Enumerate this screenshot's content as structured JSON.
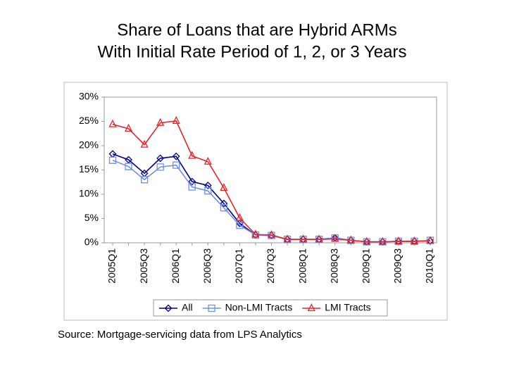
{
  "chart_data": {
    "type": "line",
    "title": "Share of Loans that are Hybrid ARMs",
    "subtitle": "With Initial Rate Period of 1, 2, or 3 Years",
    "source": "Source: Mortgage-servicing data from LPS Analytics",
    "categories": [
      "2005Q1",
      null,
      "2005Q3",
      null,
      "2006Q1",
      null,
      "2006Q3",
      null,
      "2007Q1",
      null,
      "2007Q3",
      null,
      "2008Q1",
      null,
      "2008Q3",
      null,
      "2009Q1",
      null,
      "2009Q3",
      null,
      "2010Q1"
    ],
    "series": [
      {
        "name": "All",
        "color": "#000080",
        "marker": "diamond",
        "values": [
          18.3,
          17.1,
          14.3,
          17.4,
          17.8,
          12.6,
          11.8,
          8.1,
          4.0,
          1.6,
          1.5,
          0.7,
          0.7,
          0.7,
          1.0,
          0.5,
          0.2,
          0.2,
          0.3,
          0.3,
          0.4
        ]
      },
      {
        "name": "Non-LMI Tracts",
        "color": "#6f8fe8",
        "marker": "square",
        "values": [
          17.0,
          15.7,
          13.0,
          15.6,
          16.0,
          11.5,
          10.7,
          7.2,
          3.6,
          1.6,
          1.5,
          0.7,
          0.7,
          0.7,
          1.0,
          0.5,
          0.2,
          0.2,
          0.3,
          0.3,
          0.5
        ]
      },
      {
        "name": "LMI Tracts",
        "color": "#e8242b",
        "marker": "triangle",
        "values": [
          24.4,
          23.5,
          20.2,
          24.7,
          25.1,
          17.9,
          16.7,
          11.3,
          5.1,
          1.7,
          1.6,
          0.7,
          0.7,
          0.7,
          0.8,
          0.5,
          0.2,
          0.2,
          0.3,
          0.3,
          0.4
        ]
      }
    ],
    "ylim": [
      0,
      30
    ],
    "yticks": [
      {
        "value": 0,
        "label": "0%"
      },
      {
        "value": 5,
        "label": "5%"
      },
      {
        "value": 10,
        "label": "10%"
      },
      {
        "value": 15,
        "label": "15%"
      },
      {
        "value": 20,
        "label": "20%"
      },
      {
        "value": 25,
        "label": "25%"
      },
      {
        "value": 30,
        "label": "30%"
      }
    ],
    "grid": false,
    "legend": "bottom"
  }
}
